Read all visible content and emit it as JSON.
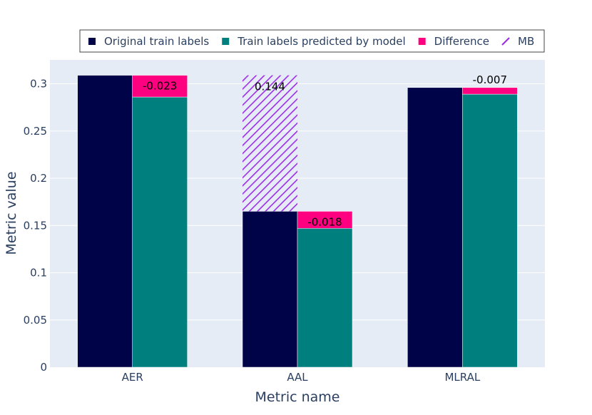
{
  "chart_data": {
    "type": "bar",
    "barmode": "stacked-grouped",
    "xlabel": "Metric name",
    "ylabel": "Metric value",
    "categories": [
      "AER",
      "AAL",
      "MLRAL"
    ],
    "ylim": [
      0,
      0.3
    ],
    "yticks": [
      0,
      0.05,
      0.1,
      0.15,
      0.2,
      0.25,
      0.3
    ],
    "ytick_labels": [
      "0",
      "0.05",
      "0.1",
      "0.15",
      "0.2",
      "0.25",
      "0.3"
    ],
    "grid": true,
    "legend_position": "top",
    "series": [
      {
        "name": "Original train labels",
        "color": "#000348",
        "values": [
          0.309,
          0.165,
          0.296
        ],
        "group": "left"
      },
      {
        "name": "Train labels predicted by model",
        "color": "#007f7f",
        "values": [
          0.286,
          0.147,
          0.289
        ],
        "group": "right"
      },
      {
        "name": "Difference",
        "color": "#fe0080",
        "values": [
          0.023,
          0.018,
          0.007
        ],
        "group": "right",
        "stack_on": "Train labels predicted by model",
        "labels": [
          "-0.023",
          "-0.018",
          "-0.007"
        ]
      },
      {
        "name": "MB",
        "color": "#9d2ee6",
        "pattern": "diagonal-hatch",
        "values": [
          null,
          0.144,
          null
        ],
        "group": "left",
        "stack_on": "Original train labels",
        "labels": [
          "",
          "0.144",
          ""
        ]
      }
    ]
  }
}
